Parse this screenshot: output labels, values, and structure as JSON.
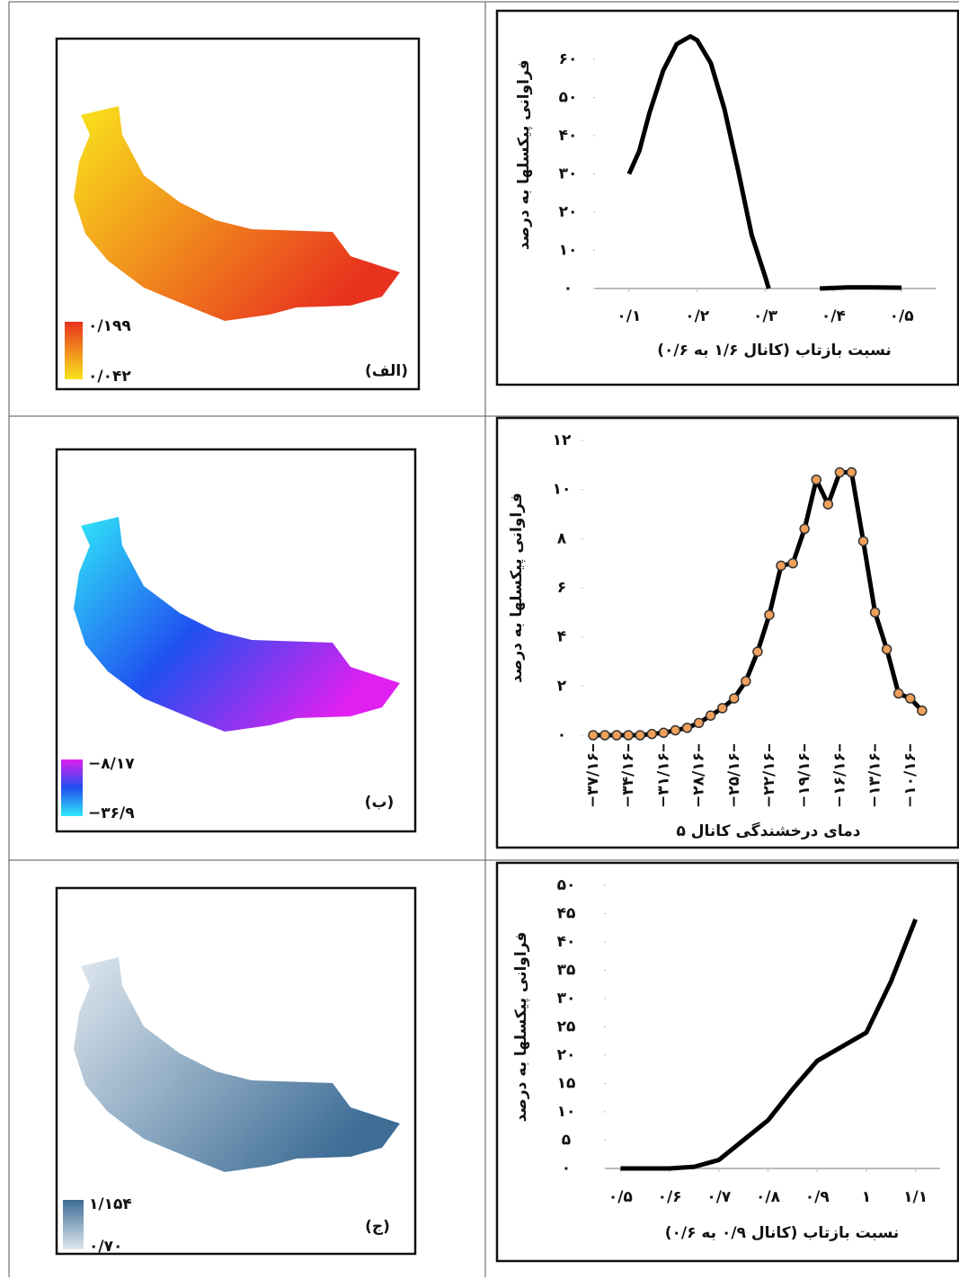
{
  "chart_data": [
    {
      "type": "line",
      "color": "#000000",
      "grid": false,
      "x": [
        0.1,
        0.115,
        0.13,
        0.15,
        0.17,
        0.19,
        0.2,
        0.22,
        0.24,
        0.26,
        0.28,
        0.3,
        0.305,
        0.35,
        0.38,
        0.42,
        0.46,
        0.5
      ],
      "values": [
        30,
        36,
        46,
        57,
        64,
        66,
        65,
        59,
        47,
        31,
        14,
        3,
        0,
        null,
        0,
        0.3,
        0.3,
        0.2
      ],
      "xlim": [
        0.05,
        0.55
      ],
      "ylim": [
        0,
        70
      ],
      "xticks": [
        {
          "value": 0.1,
          "label": "۰/۱"
        },
        {
          "value": 0.2,
          "label": "۰/۲"
        },
        {
          "value": 0.3,
          "label": "۰/۳"
        },
        {
          "value": 0.4,
          "label": "۰/۴"
        },
        {
          "value": 0.5,
          "label": "۰/۵"
        }
      ],
      "yticks": [
        {
          "value": 0,
          "label": "۰"
        },
        {
          "value": 10,
          "label": "۱۰"
        },
        {
          "value": 20,
          "label": "۲۰"
        },
        {
          "value": 30,
          "label": "۳۰"
        },
        {
          "value": 40,
          "label": "۴۰"
        },
        {
          "value": 50,
          "label": "۵۰"
        },
        {
          "value": 60,
          "label": "۶۰"
        }
      ],
      "xlabel": "نسبت بازتاب (کانال ۱/۶ به ۰/۶)",
      "ylabel": "فراوانی پیکسلها به درصد"
    },
    {
      "type": "line",
      "color": "#000000",
      "marker_color": "#f0a05a",
      "grid": false,
      "x": [
        -37.16,
        -36.16,
        -35.16,
        -34.16,
        -33.16,
        -32.16,
        -31.16,
        -30.16,
        -29.16,
        -28.16,
        -27.16,
        -26.16,
        -25.16,
        -24.16,
        -23.16,
        -22.16,
        -21.16,
        -20.16,
        -19.16,
        -18.16,
        -17.16,
        -16.16,
        -15.16,
        -14.16,
        -13.16,
        -12.16,
        -11.16,
        -10.16,
        -9.16
      ],
      "values": [
        0,
        0,
        0,
        0,
        0,
        0.05,
        0.1,
        0.2,
        0.3,
        0.5,
        0.8,
        1.1,
        1.5,
        2.2,
        3.4,
        4.9,
        6.9,
        7,
        8.4,
        10.4,
        9.4,
        10.7,
        10.7,
        7.9,
        5,
        3.5,
        1.7,
        1.5,
        1
      ],
      "xlim": [
        -38,
        -8
      ],
      "ylim": [
        0,
        12
      ],
      "xticks": [
        {
          "value": -37.16,
          "label": "−۳۷/۱۶"
        },
        {
          "value": -34.16,
          "label": "−۳۴/۱۶"
        },
        {
          "value": -31.16,
          "label": "−۳۱/۱۶"
        },
        {
          "value": -28.16,
          "label": "−۲۸/۱۶"
        },
        {
          "value": -25.16,
          "label": "−۲۵/۱۶"
        },
        {
          "value": -22.16,
          "label": "−۲۲/۱۶"
        },
        {
          "value": -19.16,
          "label": "−۱۹/۱۶"
        },
        {
          "value": -16.16,
          "label": "−۱۶/۱۶"
        },
        {
          "value": -13.16,
          "label": "−۱۳/۱۶"
        },
        {
          "value": -10.16,
          "label": "−۱۰/۱۶"
        }
      ],
      "yticks": [
        {
          "value": 0,
          "label": "۰"
        },
        {
          "value": 2,
          "label": "۲"
        },
        {
          "value": 4,
          "label": "۴"
        },
        {
          "value": 6,
          "label": "۶"
        },
        {
          "value": 8,
          "label": "۸"
        },
        {
          "value": 10,
          "label": "۱۰"
        },
        {
          "value": 12,
          "label": "۱۲"
        }
      ],
      "xlabel": "دمای درخشندگی کانال ۵",
      "ylabel": "فراوانی پیکسلها به درصد"
    },
    {
      "type": "line",
      "color": "#000000",
      "grid": false,
      "x": [
        0.5,
        0.55,
        0.6,
        0.65,
        0.7,
        0.75,
        0.8,
        0.85,
        0.9,
        0.95,
        1.0,
        1.05,
        1.1
      ],
      "values": [
        0,
        0,
        0,
        0.3,
        1.5,
        5,
        8.5,
        14,
        19,
        21.5,
        24,
        33,
        44
      ],
      "xlim": [
        0.47,
        1.15
      ],
      "ylim": [
        0,
        50
      ],
      "xticks": [
        {
          "value": 0.5,
          "label": "۰/۵"
        },
        {
          "value": 0.6,
          "label": "۰/۶"
        },
        {
          "value": 0.7,
          "label": "۰/۷"
        },
        {
          "value": 0.8,
          "label": "۰/۸"
        },
        {
          "value": 0.9,
          "label": "۰/۹"
        },
        {
          "value": 1,
          "label": "۱"
        },
        {
          "value": 1.1,
          "label": "۱/۱"
        }
      ],
      "yticks": [
        {
          "value": 0,
          "label": "۰"
        },
        {
          "value": 5,
          "label": "۵"
        },
        {
          "value": 10,
          "label": "۱۰"
        },
        {
          "value": 15,
          "label": "۱۵"
        },
        {
          "value": 20,
          "label": "۲۰"
        },
        {
          "value": 25,
          "label": "۲۵"
        },
        {
          "value": 30,
          "label": "۳۰"
        },
        {
          "value": 35,
          "label": "۳۵"
        },
        {
          "value": 40,
          "label": "۴۰"
        },
        {
          "value": 45,
          "label": "۴۵"
        },
        {
          "value": 50,
          "label": "۵۰"
        }
      ],
      "xlabel": "نسبت بازتاب (کانال ۰/۹ به ۰/۶)",
      "ylabel": "فراوانی پیکسلها به درصد"
    }
  ],
  "maps": [
    {
      "label": "(الف)",
      "legend_max": "۰/۱۹۹",
      "legend_min": "۰/۰۴۲",
      "colors": [
        "#e8321e",
        "#f9e41c"
      ]
    },
    {
      "label": "(ب)",
      "legend_max": "−۸/۱۷",
      "legend_min": "−۳۶/۹",
      "colors": [
        "#e020f0",
        "#2050f0",
        "#30e8f8"
      ]
    },
    {
      "label": "(ج)",
      "legend_max": "۱/۱۵۴",
      "legend_min": "۰/۷۰",
      "colors": [
        "#3e6d96",
        "#dfe8ef"
      ]
    }
  ]
}
